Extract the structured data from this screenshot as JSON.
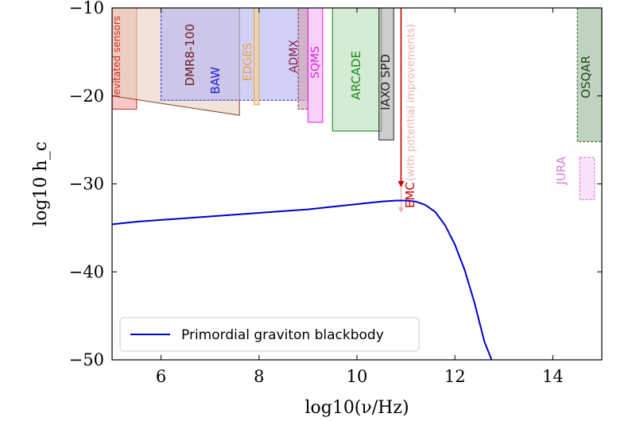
{
  "chart_data": {
    "type": "line",
    "xlabel": "log10(ν/Hz)",
    "ylabel": "log10 h_c",
    "xlim": [
      5,
      15
    ],
    "ylim": [
      -50,
      -10
    ],
    "x_ticks": [
      6,
      8,
      10,
      12,
      14
    ],
    "y_ticks": [
      -50,
      -40,
      -30,
      -20,
      -10
    ],
    "x_tick_labels": [
      "6",
      "8",
      "10",
      "12",
      "14"
    ],
    "y_tick_labels": [
      "−50",
      "−40",
      "−30",
      "−20",
      "−10"
    ],
    "grid": false,
    "legend_position": "lower-left",
    "series": [
      {
        "name": "Primordial graviton blackbody",
        "color": "#0000cc",
        "x": [
          5.0,
          5.5,
          6.0,
          6.5,
          7.0,
          7.5,
          8.0,
          8.5,
          9.0,
          9.5,
          10.0,
          10.5,
          10.8,
          11.0,
          11.2,
          11.4,
          11.6,
          11.8,
          12.0,
          12.2,
          12.4,
          12.6,
          12.75
        ],
        "y": [
          -34.6,
          -34.3,
          -34.1,
          -33.9,
          -33.7,
          -33.5,
          -33.3,
          -33.1,
          -32.9,
          -32.6,
          -32.3,
          -32.0,
          -31.9,
          -31.9,
          -32.0,
          -32.4,
          -33.2,
          -34.7,
          -36.9,
          -39.8,
          -43.5,
          -47.9,
          -50.0
        ]
      }
    ],
    "regions": [
      {
        "label": "levitated sensors",
        "x_range": [
          5.0,
          5.5
        ],
        "y_bottom": -21.5,
        "fill": "#f4a6a6",
        "edge": "#d42020",
        "dashed": false,
        "label_color": "#e02020"
      },
      {
        "label": "DMR8-100",
        "x_range": [
          5.0,
          7.6
        ],
        "y_bottom_left": -20.0,
        "y_bottom_right": -22.2,
        "fill": "#e8d2bf",
        "edge": "#7a4a30",
        "dashed": false,
        "label_color": "#6b1a1a"
      },
      {
        "label": "BAW",
        "x_range": [
          6.0,
          9.0
        ],
        "y_bottom": -20.5,
        "fill": "#b4b4f4",
        "edge": "#2020d0",
        "dashed": true,
        "label_color": "#2020d0"
      },
      {
        "label": "EDGES",
        "x_range": [
          7.9,
          8.0
        ],
        "y_bottom": -21.0,
        "fill": "#f8d7a0",
        "edge": "#f0a030",
        "dashed": false,
        "label_color": "#f0a030"
      },
      {
        "label": "ADMX",
        "x_range": [
          8.8,
          9.0
        ],
        "y_bottom": -21.5,
        "fill": "#cfa0b0",
        "edge": "#7a2040",
        "dashed": true,
        "label_color": "#8b1a4a"
      },
      {
        "label": "SQMS",
        "x_range": [
          9.0,
          9.3
        ],
        "y_bottom": -23.0,
        "fill": "#f4b4f4",
        "edge": "#e020e0",
        "dashed": false,
        "label_color": "#e020e0"
      },
      {
        "label": "ARCADE",
        "x_range": [
          9.5,
          10.5
        ],
        "y_bottom": -24.0,
        "fill": "#b8e0b8",
        "edge": "#1a7a1a",
        "dashed": false,
        "label_color": "#1a8a1a"
      },
      {
        "label": "IAXO SPD",
        "x_range": [
          10.45,
          10.75
        ],
        "y_bottom": -25.0,
        "fill": "#b0b0b0",
        "edge": "#202020",
        "dashed": false,
        "label_color": "#202020"
      },
      {
        "label": "OSQAR",
        "x_range": [
          14.5,
          15.0
        ],
        "y_bottom": -25.2,
        "fill": "#9ab89a",
        "edge": "#1a5a1a",
        "dashed": true,
        "label_color": "#1a4a1a"
      },
      {
        "label": "JURA",
        "x_range": [
          14.55,
          14.85
        ],
        "y_top": -27.0,
        "y_bottom": -31.8,
        "fill": "#f8d0f8",
        "edge": "#e060e0",
        "dashed": true,
        "label_color": "#d880d8"
      }
    ],
    "arrows": [
      {
        "label": "EMC",
        "x": 10.9,
        "y_top": -10.0,
        "y_bottom": -30.4,
        "color": "#cc0000"
      },
      {
        "label": "(with potential improvements)",
        "x": 10.9,
        "y_top": -30.4,
        "y_bottom": -33.3,
        "color": "#f0b0b0"
      }
    ]
  }
}
